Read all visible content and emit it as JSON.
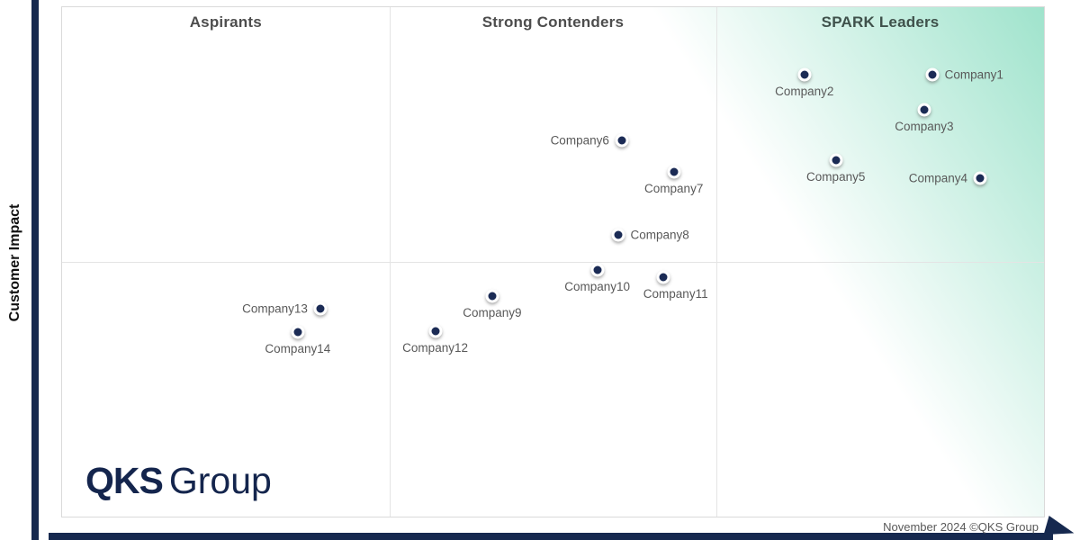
{
  "y_axis": {
    "label": "Customer Impact"
  },
  "logo": {
    "bold": "QKS",
    "regular": "Group"
  },
  "footer": {
    "attribution": "November 2024 ©QKS Group"
  },
  "colors": {
    "axis_navy": "#16294f",
    "dot_navy": "#1b2b55",
    "leaders_green": "#9fe3cc",
    "quadrant_header_text": "#4d4d4d",
    "leaders_header_text": "#3f514b",
    "point_label_text": "#595959",
    "chart_border": "#dadada",
    "gridline": "#e4e4e4"
  },
  "chart_data": {
    "type": "scatter",
    "title": "",
    "xlabel": "",
    "ylabel": "Customer Impact",
    "columns": [
      "Aspirants",
      "Strong Contenders",
      "SPARK Leaders"
    ],
    "grid": "quadrant thirds with horizontal midline",
    "legend": "none",
    "background": "diagonal green gradient strongest at top-right (SPARK Leaders corner)",
    "points": [
      {
        "name": "Company1",
        "x_pct": 88.6,
        "y_pct": 13.2,
        "label_side": "right"
      },
      {
        "name": "Company2",
        "x_pct": 75.6,
        "y_pct": 13.2,
        "label_side": "below"
      },
      {
        "name": "Company3",
        "x_pct": 87.8,
        "y_pct": 20.2,
        "label_side": "below"
      },
      {
        "name": "Company4",
        "x_pct": 93.5,
        "y_pct": 33.5,
        "label_side": "left"
      },
      {
        "name": "Company5",
        "x_pct": 78.8,
        "y_pct": 30.1,
        "label_side": "below"
      },
      {
        "name": "Company6",
        "x_pct": 57.0,
        "y_pct": 26.1,
        "label_side": "left"
      },
      {
        "name": "Company7",
        "x_pct": 62.3,
        "y_pct": 32.4,
        "label_side": "below"
      },
      {
        "name": "Company8",
        "x_pct": 56.6,
        "y_pct": 44.7,
        "label_side": "right"
      },
      {
        "name": "Company9",
        "x_pct": 43.8,
        "y_pct": 56.7,
        "label_side": "below"
      },
      {
        "name": "Company10",
        "x_pct": 54.5,
        "y_pct": 51.6,
        "label_side": "below"
      },
      {
        "name": "Company11",
        "x_pct": 61.2,
        "y_pct": 53.0,
        "label_side": "below",
        "label_dx": 14
      },
      {
        "name": "Company12",
        "x_pct": 38.0,
        "y_pct": 63.6,
        "label_side": "below"
      },
      {
        "name": "Company13",
        "x_pct": 26.3,
        "y_pct": 59.2,
        "label_side": "left"
      },
      {
        "name": "Company14",
        "x_pct": 24.0,
        "y_pct": 63.7,
        "label_side": "below"
      }
    ]
  }
}
